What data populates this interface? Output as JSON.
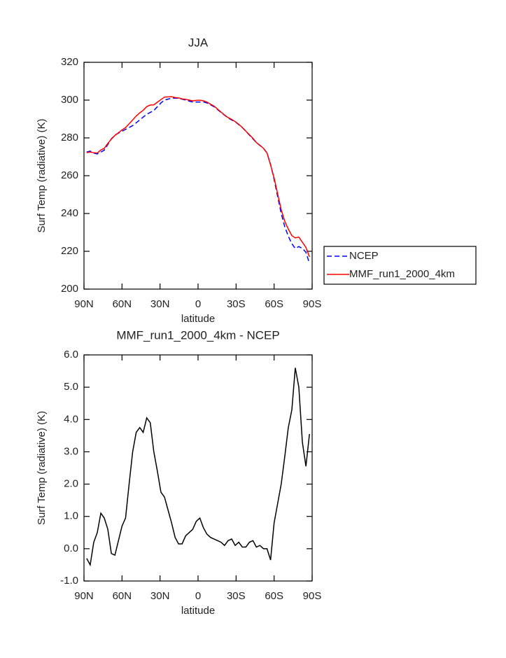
{
  "chart_data": [
    {
      "type": "line",
      "title": "JJA",
      "xlabel": "latitude",
      "ylabel": "Surf Temp (radiative) (K)",
      "x": [
        87.9,
        85.1,
        82.3,
        79.5,
        76.7,
        74.0,
        71.2,
        68.4,
        65.6,
        62.8,
        60.0,
        57.2,
        54.4,
        51.6,
        48.8,
        46.0,
        43.3,
        40.5,
        37.7,
        34.9,
        32.1,
        29.3,
        26.5,
        23.7,
        20.9,
        18.1,
        15.4,
        12.6,
        9.8,
        7.0,
        4.2,
        1.4,
        -1.4,
        -4.2,
        -7.0,
        -9.8,
        -12.6,
        -15.4,
        -18.1,
        -20.9,
        -23.7,
        -26.5,
        -29.3,
        -32.1,
        -34.9,
        -37.7,
        -40.5,
        -43.3,
        -46.0,
        -48.8,
        -51.6,
        -54.4,
        -57.2,
        -60.0,
        -62.8,
        -65.6,
        -68.4,
        -71.2,
        -74.0,
        -76.7,
        -79.5,
        -82.3,
        -85.1,
        -87.9
      ],
      "series": [
        {
          "name": "NCEP",
          "color": "#0000ff",
          "style": "dashed",
          "values": [
            272.5,
            273,
            272,
            271.5,
            272.5,
            273.5,
            276.5,
            279.5,
            281.5,
            282.5,
            283.5,
            284.5,
            285.5,
            286.5,
            288,
            289.5,
            291,
            292.5,
            293.5,
            294.5,
            296.5,
            298.5,
            300,
            300.5,
            301,
            301,
            301,
            300.5,
            300,
            299.5,
            299,
            299,
            299,
            299,
            298.5,
            297.5,
            296.5,
            295,
            293.5,
            292,
            290.5,
            289.5,
            288.5,
            287,
            285.5,
            283.5,
            281.5,
            279.5,
            277.5,
            276,
            274.5,
            272,
            266,
            258,
            249,
            240,
            233,
            228,
            224,
            221.5,
            222.5,
            221.5,
            219.5,
            213.5
          ]
        },
        {
          "name": "MMF_run1_2000_4km",
          "color": "#ff0000",
          "style": "solid",
          "values": [
            272.2,
            272.5,
            272.2,
            272.0,
            273.6,
            274.45,
            277.1,
            279.35,
            281.3,
            282.75,
            284.2,
            285.45,
            287.5,
            289.5,
            291.6,
            293.25,
            294.6,
            296.55,
            297.4,
            297.5,
            298.9,
            300.25,
            301.6,
            301.7,
            301.8,
            301.35,
            301.15,
            300.65,
            300.4,
            300.0,
            299.6,
            299.85,
            299.95,
            299.65,
            298.95,
            297.85,
            296.8,
            295.25,
            293.7,
            292.1,
            290.75,
            289.8,
            288.6,
            287.2,
            285.55,
            283.55,
            281.7,
            279.75,
            277.55,
            276.1,
            274.5,
            272.0,
            265.65,
            258.8,
            250.4,
            242.0,
            235.85,
            231.75,
            228.3,
            227.1,
            227.5,
            224.8,
            222.05,
            217.05
          ]
        }
      ],
      "xlim": [
        90,
        -90
      ],
      "xticks": [
        {
          "value": 90,
          "label": "90N"
        },
        {
          "value": 60,
          "label": "60N"
        },
        {
          "value": 30,
          "label": "30N"
        },
        0,
        {
          "value": -30,
          "label": "30S"
        },
        {
          "value": -60,
          "label": "60S"
        },
        {
          "value": -90,
          "label": "90S"
        }
      ],
      "ylim": [
        200,
        320
      ],
      "yticks": [
        200,
        220,
        240,
        260,
        280,
        300,
        320
      ],
      "legend": "right"
    },
    {
      "type": "line",
      "title": "MMF_run1_2000_4km - NCEP",
      "xlabel": "latitude",
      "ylabel": "Surf Temp (radiative) (K)",
      "x": [
        87.9,
        85.1,
        82.3,
        79.5,
        76.7,
        74.0,
        71.2,
        68.4,
        65.6,
        62.8,
        60.0,
        57.2,
        54.4,
        51.6,
        48.8,
        46.0,
        43.3,
        40.5,
        37.7,
        34.9,
        32.1,
        29.3,
        26.5,
        23.7,
        20.9,
        18.1,
        15.4,
        12.6,
        9.8,
        7.0,
        4.2,
        1.4,
        -1.4,
        -4.2,
        -7.0,
        -9.8,
        -12.6,
        -15.4,
        -18.1,
        -20.9,
        -23.7,
        -26.5,
        -29.3,
        -32.1,
        -34.9,
        -37.7,
        -40.5,
        -43.3,
        -46.0,
        -48.8,
        -51.6,
        -54.4,
        -57.2,
        -60.0,
        -62.8,
        -65.6,
        -68.4,
        -71.2,
        -74.0,
        -76.7,
        -79.5,
        -82.3,
        -85.1,
        -87.9
      ],
      "series": [
        {
          "color": "#000000",
          "style": "solid",
          "values": [
            -0.3,
            -0.5,
            0.2,
            0.5,
            1.1,
            0.95,
            0.6,
            -0.15,
            -0.2,
            0.25,
            0.7,
            0.95,
            2.0,
            3.0,
            3.6,
            3.75,
            3.6,
            4.05,
            3.9,
            3.0,
            2.4,
            1.75,
            1.6,
            1.2,
            0.8,
            0.35,
            0.15,
            0.15,
            0.4,
            0.5,
            0.6,
            0.85,
            0.95,
            0.65,
            0.45,
            0.35,
            0.3,
            0.25,
            0.2,
            0.1,
            0.25,
            0.3,
            0.1,
            0.2,
            0.05,
            0.05,
            0.2,
            0.25,
            0.05,
            0.1,
            0.0,
            0.0,
            -0.35,
            0.8,
            1.4,
            2.0,
            2.85,
            3.75,
            4.3,
            5.6,
            5.0,
            3.3,
            2.55,
            3.55
          ]
        }
      ],
      "xlim": [
        90,
        -90
      ],
      "xticks": [
        {
          "value": 90,
          "label": "90N"
        },
        {
          "value": 60,
          "label": "60N"
        },
        {
          "value": 30,
          "label": "30N"
        },
        0,
        {
          "value": -30,
          "label": "30S"
        },
        {
          "value": -60,
          "label": "60S"
        },
        {
          "value": -90,
          "label": "90S"
        }
      ],
      "ylim": [
        -1,
        6
      ],
      "yticks": [
        {
          "value": -1,
          "label": "-1.0"
        },
        {
          "value": 0,
          "label": "0.0"
        },
        {
          "value": 1,
          "label": "1.0"
        },
        {
          "value": 2,
          "label": "2.0"
        },
        {
          "value": 3,
          "label": "3.0"
        },
        {
          "value": 4,
          "label": "4.0"
        },
        {
          "value": 5,
          "label": "5.0"
        },
        {
          "value": 6,
          "label": "6.0"
        }
      ]
    }
  ]
}
